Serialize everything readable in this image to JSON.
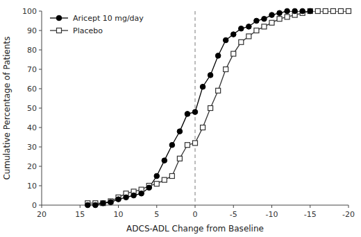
{
  "chart_data": {
    "type": "line",
    "xlabel": "ADCS-ADL Change from Baseline",
    "ylabel": "Cumulative Percentage of Patients",
    "xlim": [
      20,
      -20
    ],
    "ylim": [
      0,
      100
    ],
    "xticks": [
      20,
      15,
      10,
      5,
      0,
      -5,
      -10,
      -15,
      -20
    ],
    "yticks": [
      0,
      10,
      20,
      30,
      40,
      50,
      60,
      70,
      80,
      90,
      100
    ],
    "vline_x": 0,
    "legend": "upper left",
    "grid": false,
    "series": [
      {
        "name": "Aricept 10 mg/day",
        "color": "#000000",
        "marker": "circle",
        "x": [
          14,
          13,
          12,
          11,
          10,
          9,
          8,
          7,
          6,
          5,
          4,
          3,
          2,
          1,
          0,
          -1,
          -2,
          -3,
          -4,
          -5,
          -6,
          -7,
          -8,
          -9,
          -10,
          -11,
          -12,
          -13,
          -14,
          -15
        ],
        "values": [
          0,
          0,
          1,
          1.5,
          3,
          4,
          5,
          6,
          9,
          15,
          23,
          31,
          38,
          47,
          48,
          61,
          67,
          77,
          85,
          88,
          91,
          92,
          95,
          96,
          98,
          99,
          100,
          100,
          100,
          100
        ]
      },
      {
        "name": "Placebo",
        "color": "#333333",
        "marker": "open-square",
        "x": [
          14,
          13,
          12,
          11,
          10,
          9,
          8,
          7,
          6,
          5,
          4,
          3,
          2,
          1,
          0,
          -1,
          -2,
          -3,
          -4,
          -5,
          -6,
          -7,
          -8,
          -9,
          -10,
          -11,
          -12,
          -13,
          -14,
          -15,
          -16,
          -17,
          -18,
          -19,
          -20
        ],
        "values": [
          1,
          1,
          1,
          2,
          4,
          6,
          7,
          8,
          10,
          11,
          13,
          15,
          24,
          31,
          32,
          40,
          50,
          59,
          70,
          78,
          84,
          87,
          90,
          92,
          94,
          96,
          97,
          98,
          99,
          100,
          100,
          100,
          100,
          100,
          100
        ]
      }
    ]
  }
}
